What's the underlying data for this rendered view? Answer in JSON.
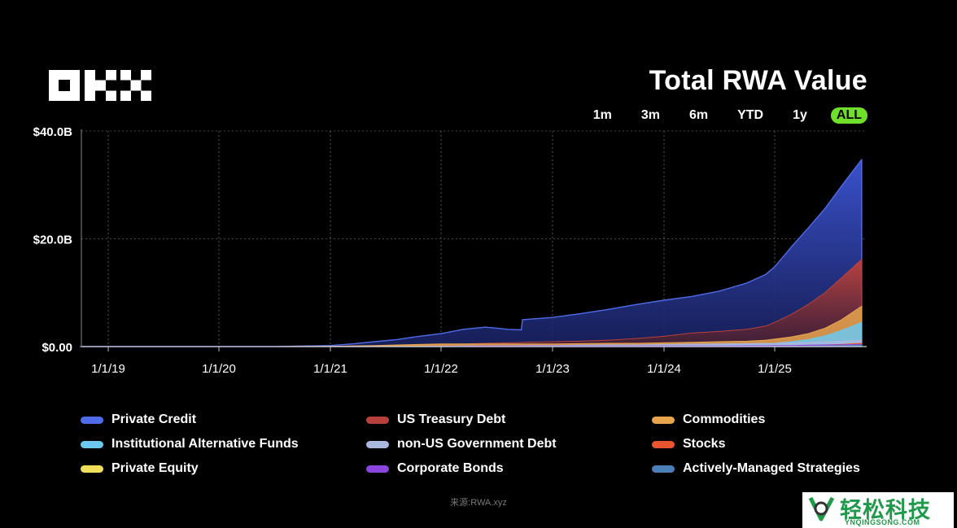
{
  "brand": {
    "name": "OKX"
  },
  "header": {
    "title": "Total RWA Value"
  },
  "time_ranges": [
    {
      "label": "1m",
      "active": false
    },
    {
      "label": "3m",
      "active": false
    },
    {
      "label": "6m",
      "active": false
    },
    {
      "label": "YTD",
      "active": false
    },
    {
      "label": "1y",
      "active": false
    },
    {
      "label": "ALL",
      "active": true
    }
  ],
  "source": "来源:RWA.xyz",
  "watermark": {
    "text": "轻松科技",
    "sub": "YNQINGSONG.COM"
  },
  "colors": {
    "background": "#000000",
    "active_range": "#6ee029"
  },
  "chart_data": {
    "type": "area",
    "stacking": "overlay",
    "title": "Total RWA Value",
    "xlabel": "",
    "ylabel": "",
    "x_ticks": [
      "1/1/19",
      "1/1/20",
      "1/1/21",
      "1/1/22",
      "1/1/23",
      "1/1/24",
      "1/1/25"
    ],
    "y_ticks": [
      "$0.00",
      "$20.0B",
      "$40.0B"
    ],
    "ylim": [
      0,
      40
    ],
    "x": [
      2018.75,
      2019.0,
      2020.0,
      2020.5,
      2021.0,
      2021.2,
      2021.4,
      2021.6,
      2021.8,
      2022.0,
      2022.2,
      2022.4,
      2022.6,
      2022.72,
      2022.73,
      2023.0,
      2023.25,
      2023.5,
      2023.75,
      2024.0,
      2024.25,
      2024.5,
      2024.75,
      2024.92,
      2025.0,
      2025.15,
      2025.3,
      2025.45,
      2025.6,
      2025.78
    ],
    "series": [
      {
        "name": "Private Credit",
        "color": "#4f6ce8",
        "values": [
          0,
          0,
          0,
          0.02,
          0.2,
          0.5,
          0.9,
          1.3,
          1.9,
          2.4,
          3.2,
          3.6,
          3.2,
          3.1,
          5.0,
          5.4,
          6.1,
          6.9,
          7.8,
          8.6,
          9.3,
          10.3,
          11.8,
          13.4,
          14.8,
          18.5,
          22.0,
          25.6,
          29.8,
          34.7
        ]
      },
      {
        "name": "US Treasury Debt",
        "color": "#b8403c",
        "values": [
          0,
          0,
          0,
          0,
          0.05,
          0.1,
          0.15,
          0.2,
          0.3,
          0.4,
          0.5,
          0.6,
          0.7,
          0.75,
          0.8,
          0.9,
          1.0,
          1.2,
          1.5,
          1.9,
          2.5,
          2.8,
          3.2,
          3.8,
          4.5,
          6.0,
          7.8,
          10.0,
          12.8,
          16.2
        ]
      },
      {
        "name": "Commodities",
        "color": "#e9a44e",
        "values": [
          0,
          0,
          0,
          0,
          0.05,
          0.1,
          0.2,
          0.3,
          0.4,
          0.5,
          0.5,
          0.5,
          0.5,
          0.5,
          0.5,
          0.5,
          0.55,
          0.6,
          0.6,
          0.7,
          0.8,
          0.9,
          1.0,
          1.2,
          1.4,
          1.8,
          2.4,
          3.4,
          5.0,
          7.5
        ]
      },
      {
        "name": "Institutional Alternative Funds",
        "color": "#6cc8ee",
        "values": [
          0,
          0,
          0,
          0,
          0,
          0,
          0,
          0,
          0,
          0,
          0,
          0,
          0,
          0,
          0,
          0,
          0,
          0,
          0.05,
          0.1,
          0.2,
          0.3,
          0.4,
          0.5,
          0.6,
          0.9,
          1.3,
          2.0,
          3.0,
          4.5
        ]
      },
      {
        "name": "non-US Government Debt",
        "color": "#a9b8de",
        "values": [
          0,
          0,
          0,
          0,
          0,
          0,
          0,
          0,
          0,
          0.05,
          0.1,
          0.12,
          0.15,
          0.15,
          0.2,
          0.2,
          0.25,
          0.3,
          0.3,
          0.4,
          0.45,
          0.5,
          0.55,
          0.6,
          0.6,
          0.7,
          0.8,
          0.9,
          1.0,
          1.2
        ]
      },
      {
        "name": "Stocks",
        "color": "#e8552f",
        "values": [
          0,
          0,
          0,
          0,
          0,
          0,
          0,
          0,
          0,
          0,
          0,
          0,
          0,
          0,
          0,
          0,
          0,
          0,
          0,
          0,
          0,
          0,
          0,
          0.05,
          0.1,
          0.15,
          0.2,
          0.3,
          0.4,
          0.6
        ]
      },
      {
        "name": "Private Equity",
        "color": "#f0df5a",
        "values": [
          0,
          0,
          0,
          0,
          0,
          0,
          0,
          0,
          0,
          0,
          0,
          0,
          0,
          0,
          0,
          0,
          0,
          0,
          0,
          0,
          0.02,
          0.03,
          0.05,
          0.06,
          0.08,
          0.1,
          0.15,
          0.2,
          0.3,
          0.4
        ]
      },
      {
        "name": "Corporate Bonds",
        "color": "#8b46e0",
        "values": [
          0,
          0,
          0,
          0,
          0,
          0,
          0,
          0,
          0,
          0.05,
          0.08,
          0.1,
          0.1,
          0.1,
          0.1,
          0.1,
          0.1,
          0.1,
          0.1,
          0.1,
          0.1,
          0.1,
          0.15,
          0.15,
          0.2,
          0.2,
          0.25,
          0.3,
          0.35,
          0.4
        ]
      },
      {
        "name": "Actively-Managed Strategies",
        "color": "#4a7fb8",
        "values": [
          0,
          0,
          0,
          0,
          0,
          0,
          0,
          0,
          0,
          0,
          0,
          0,
          0,
          0,
          0,
          0,
          0,
          0,
          0,
          0,
          0,
          0,
          0,
          0,
          0.02,
          0.05,
          0.08,
          0.1,
          0.15,
          0.25
        ]
      }
    ]
  }
}
